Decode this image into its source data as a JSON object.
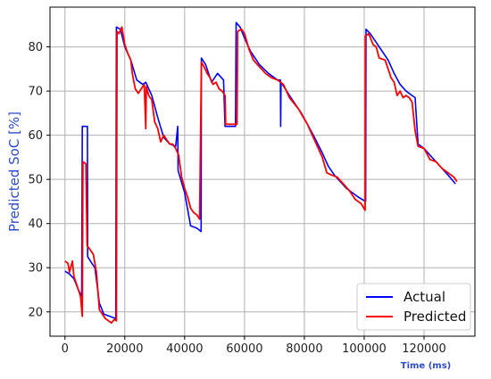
{
  "chart_data": {
    "type": "line",
    "title": "",
    "xlabel": "Time (ms)",
    "ylabel": "Predicted SoC [%]",
    "xlim": [
      -5000,
      137000
    ],
    "ylim": [
      14.5,
      89
    ],
    "xticks": [
      0,
      20000,
      40000,
      60000,
      80000,
      100000,
      120000
    ],
    "xtick_labels": [
      "0",
      "20000",
      "40000",
      "60000",
      "80000",
      "100000",
      "120000"
    ],
    "yticks": [
      20,
      30,
      40,
      50,
      60,
      70,
      80
    ],
    "ytick_labels": [
      "20",
      "30",
      "40",
      "50",
      "60",
      "70",
      "80"
    ],
    "grid": true,
    "legend_position": "bottom-right",
    "xlabel_color": "#2c4bcf",
    "ylabel_color": "#2c4bcf",
    "series": [
      {
        "name": "Actual",
        "color": "#0000ff",
        "points": [
          [
            0,
            29.2
          ],
          [
            1500,
            28.6
          ],
          [
            3000,
            27.5
          ],
          [
            4500,
            25
          ],
          [
            5600,
            23.5
          ],
          [
            5800,
            62
          ],
          [
            7500,
            62
          ],
          [
            7600,
            32.5
          ],
          [
            9000,
            31
          ],
          [
            10000,
            30
          ],
          [
            11500,
            22
          ],
          [
            13000,
            19.5
          ],
          [
            15000,
            19
          ],
          [
            17000,
            18.5
          ],
          [
            17200,
            84.5
          ],
          [
            18500,
            84
          ],
          [
            20000,
            80
          ],
          [
            22000,
            77
          ],
          [
            24000,
            72.5
          ],
          [
            26000,
            71.5
          ],
          [
            27000,
            72
          ],
          [
            29000,
            69
          ],
          [
            31000,
            64
          ],
          [
            33000,
            59.5
          ],
          [
            35000,
            58
          ],
          [
            37000,
            57.5
          ],
          [
            37700,
            62
          ],
          [
            37800,
            52
          ],
          [
            40000,
            47
          ],
          [
            42000,
            39.5
          ],
          [
            44000,
            39
          ],
          [
            45500,
            38.2
          ],
          [
            45600,
            77.5
          ],
          [
            47000,
            76
          ],
          [
            49000,
            72
          ],
          [
            50000,
            73
          ],
          [
            51000,
            74
          ],
          [
            53000,
            72.5
          ],
          [
            53500,
            62
          ],
          [
            57000,
            62
          ],
          [
            57200,
            85.5
          ],
          [
            58500,
            84.5
          ],
          [
            60000,
            82
          ],
          [
            62000,
            79
          ],
          [
            65000,
            76
          ],
          [
            68000,
            74
          ],
          [
            71000,
            72.5
          ],
          [
            72000,
            72.5
          ],
          [
            72100,
            62
          ],
          [
            72200,
            72
          ],
          [
            75000,
            69
          ],
          [
            79000,
            65
          ],
          [
            83000,
            60
          ],
          [
            86000,
            56
          ],
          [
            88000,
            53
          ],
          [
            90000,
            51
          ],
          [
            94000,
            48
          ],
          [
            98000,
            46
          ],
          [
            100500,
            45
          ],
          [
            100600,
            84
          ],
          [
            102000,
            83
          ],
          [
            104000,
            81
          ],
          [
            106000,
            79
          ],
          [
            108000,
            77
          ],
          [
            110000,
            74
          ],
          [
            112000,
            71.5
          ],
          [
            114000,
            70
          ],
          [
            116000,
            69
          ],
          [
            117000,
            68.5
          ],
          [
            118000,
            58
          ],
          [
            120000,
            57
          ],
          [
            124000,
            54
          ],
          [
            128000,
            51
          ],
          [
            130500,
            49
          ]
        ]
      },
      {
        "name": "Predicted",
        "color": "#ff0000",
        "points": [
          [
            0,
            31.5
          ],
          [
            1000,
            31
          ],
          [
            1500,
            29
          ],
          [
            2500,
            31.5
          ],
          [
            3000,
            28
          ],
          [
            4000,
            26
          ],
          [
            5200,
            23.5
          ],
          [
            5800,
            19
          ],
          [
            6000,
            54
          ],
          [
            7000,
            53.5
          ],
          [
            7400,
            35
          ],
          [
            8500,
            34
          ],
          [
            9500,
            33
          ],
          [
            10500,
            29
          ],
          [
            11500,
            20.5
          ],
          [
            12500,
            19.5
          ],
          [
            13500,
            18.5
          ],
          [
            14500,
            18
          ],
          [
            15500,
            17.5
          ],
          [
            16500,
            18.3
          ],
          [
            17200,
            18
          ],
          [
            17400,
            83.5
          ],
          [
            18000,
            83
          ],
          [
            19000,
            84.5
          ],
          [
            20000,
            80.5
          ],
          [
            21000,
            78.5
          ],
          [
            22000,
            77
          ],
          [
            22500,
            74
          ],
          [
            23500,
            70.5
          ],
          [
            24500,
            69.5
          ],
          [
            25500,
            70.5
          ],
          [
            26500,
            71.5
          ],
          [
            27000,
            61.5
          ],
          [
            27200,
            71
          ],
          [
            28000,
            69
          ],
          [
            29000,
            68
          ],
          [
            30000,
            63
          ],
          [
            31000,
            61.5
          ],
          [
            32000,
            58.5
          ],
          [
            33000,
            60
          ],
          [
            34000,
            59
          ],
          [
            35000,
            58
          ],
          [
            36000,
            58
          ],
          [
            37000,
            57
          ],
          [
            38000,
            55.5
          ],
          [
            39000,
            50.5
          ],
          [
            40000,
            48
          ],
          [
            41000,
            46
          ],
          [
            42000,
            43.5
          ],
          [
            43000,
            42.5
          ],
          [
            44000,
            42
          ],
          [
            45000,
            41
          ],
          [
            45600,
            76.5
          ],
          [
            46500,
            75.5
          ],
          [
            47500,
            74
          ],
          [
            48500,
            73
          ],
          [
            49500,
            71.5
          ],
          [
            50500,
            72
          ],
          [
            51500,
            70.5
          ],
          [
            52500,
            70
          ],
          [
            53500,
            69
          ],
          [
            53700,
            62.5
          ],
          [
            57500,
            62.5
          ],
          [
            57700,
            83.5
          ],
          [
            59000,
            84
          ],
          [
            60000,
            83
          ],
          [
            61500,
            79.5
          ],
          [
            63000,
            77
          ],
          [
            65000,
            75.5
          ],
          [
            67000,
            74
          ],
          [
            69000,
            73
          ],
          [
            71000,
            72.5
          ],
          [
            73000,
            71.5
          ],
          [
            75000,
            68.5
          ],
          [
            78000,
            66
          ],
          [
            81000,
            62.5
          ],
          [
            84000,
            58
          ],
          [
            86000,
            55
          ],
          [
            87500,
            51.5
          ],
          [
            89000,
            51
          ],
          [
            91000,
            50.5
          ],
          [
            93000,
            49
          ],
          [
            95000,
            47.5
          ],
          [
            97000,
            45.5
          ],
          [
            99000,
            44.5
          ],
          [
            100300,
            43
          ],
          [
            100400,
            82.5
          ],
          [
            101500,
            83
          ],
          [
            103000,
            80.5
          ],
          [
            104000,
            80
          ],
          [
            105000,
            77.5
          ],
          [
            107000,
            77
          ],
          [
            109000,
            73
          ],
          [
            110000,
            72
          ],
          [
            111000,
            69
          ],
          [
            112000,
            70
          ],
          [
            113000,
            68.5
          ],
          [
            114000,
            69
          ],
          [
            115000,
            68.5
          ],
          [
            116000,
            67.5
          ],
          [
            117000,
            61
          ],
          [
            118000,
            57.5
          ],
          [
            120000,
            57
          ],
          [
            122000,
            54.5
          ],
          [
            124000,
            54
          ],
          [
            126000,
            52.5
          ],
          [
            128000,
            51.5
          ],
          [
            130000,
            50.5
          ],
          [
            131000,
            49.5
          ]
        ]
      }
    ]
  }
}
